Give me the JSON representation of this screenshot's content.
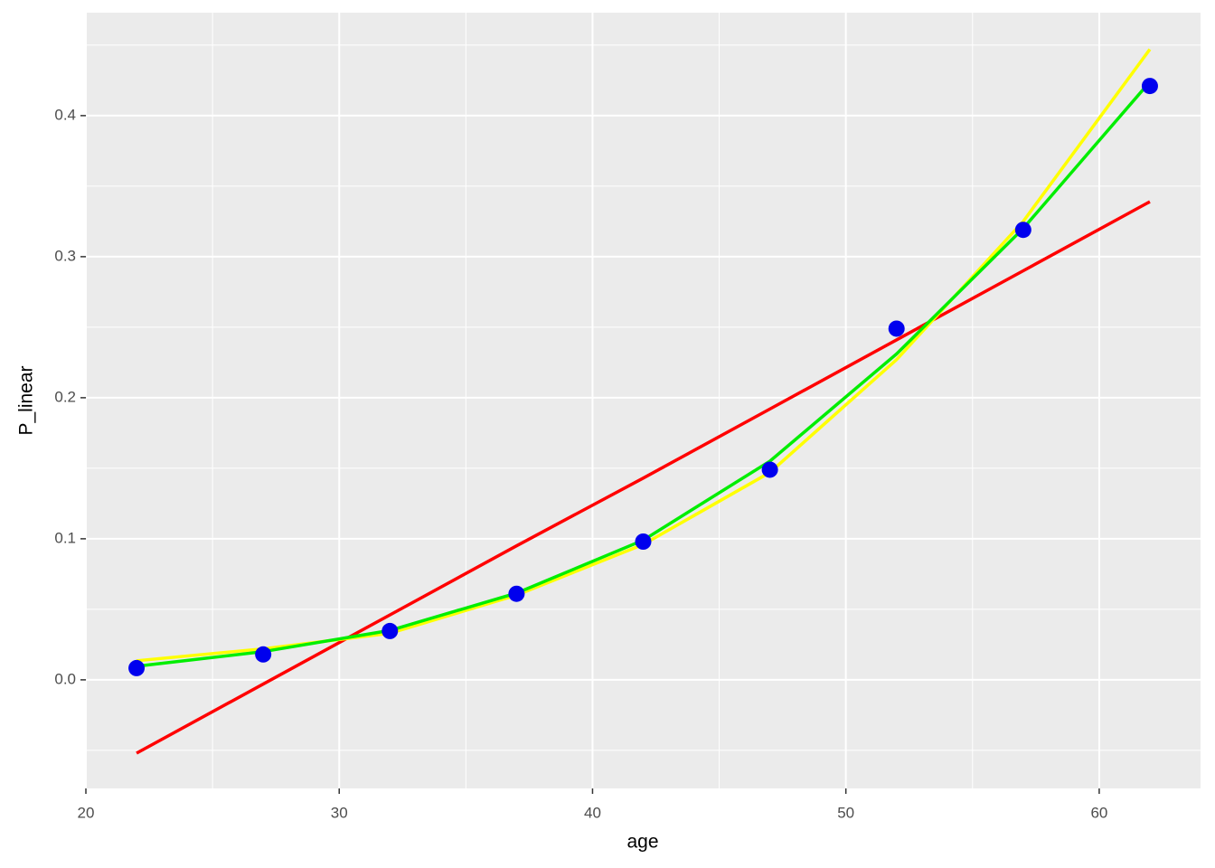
{
  "chart_data": {
    "type": "line",
    "x_label": "age",
    "y_label": "P_linear",
    "x": [
      22,
      27,
      32,
      37,
      42,
      47,
      52,
      57,
      62
    ],
    "series": [
      {
        "color": "#ff0000",
        "mode": "line",
        "values": [
          -0.052,
          -0.003,
          0.046,
          0.095,
          0.143,
          0.192,
          0.241,
          0.29,
          0.339
        ]
      },
      {
        "color": "#ffff00",
        "mode": "line",
        "values": [
          0.0135,
          0.022,
          0.033,
          0.06,
          0.096,
          0.147,
          0.227,
          0.325,
          0.447
        ]
      },
      {
        "color": "#00ee00",
        "mode": "line",
        "values": [
          0.0096,
          0.02,
          0.035,
          0.0615,
          0.099,
          0.155,
          0.231,
          0.32,
          0.424
        ]
      },
      {
        "color": "#0000ee",
        "mode": "markers",
        "values": [
          0.0083,
          0.018,
          0.0346,
          0.061,
          0.098,
          0.149,
          0.249,
          0.319,
          0.421
        ]
      }
    ],
    "xlim": [
      20,
      64
    ],
    "ylim": [
      -0.077,
      0.473
    ],
    "xticks": [
      20,
      30,
      40,
      50,
      60
    ],
    "yticks": [
      {
        "value": 0,
        "label": "0.0"
      },
      0.1,
      0.2,
      0.3,
      0.4
    ],
    "x_minor_breaks": [
      25,
      35,
      45,
      55
    ],
    "y_minor_breaks": [
      -0.05,
      0.05,
      0.15,
      0.25,
      0.35,
      0.45
    ],
    "grid": true
  }
}
